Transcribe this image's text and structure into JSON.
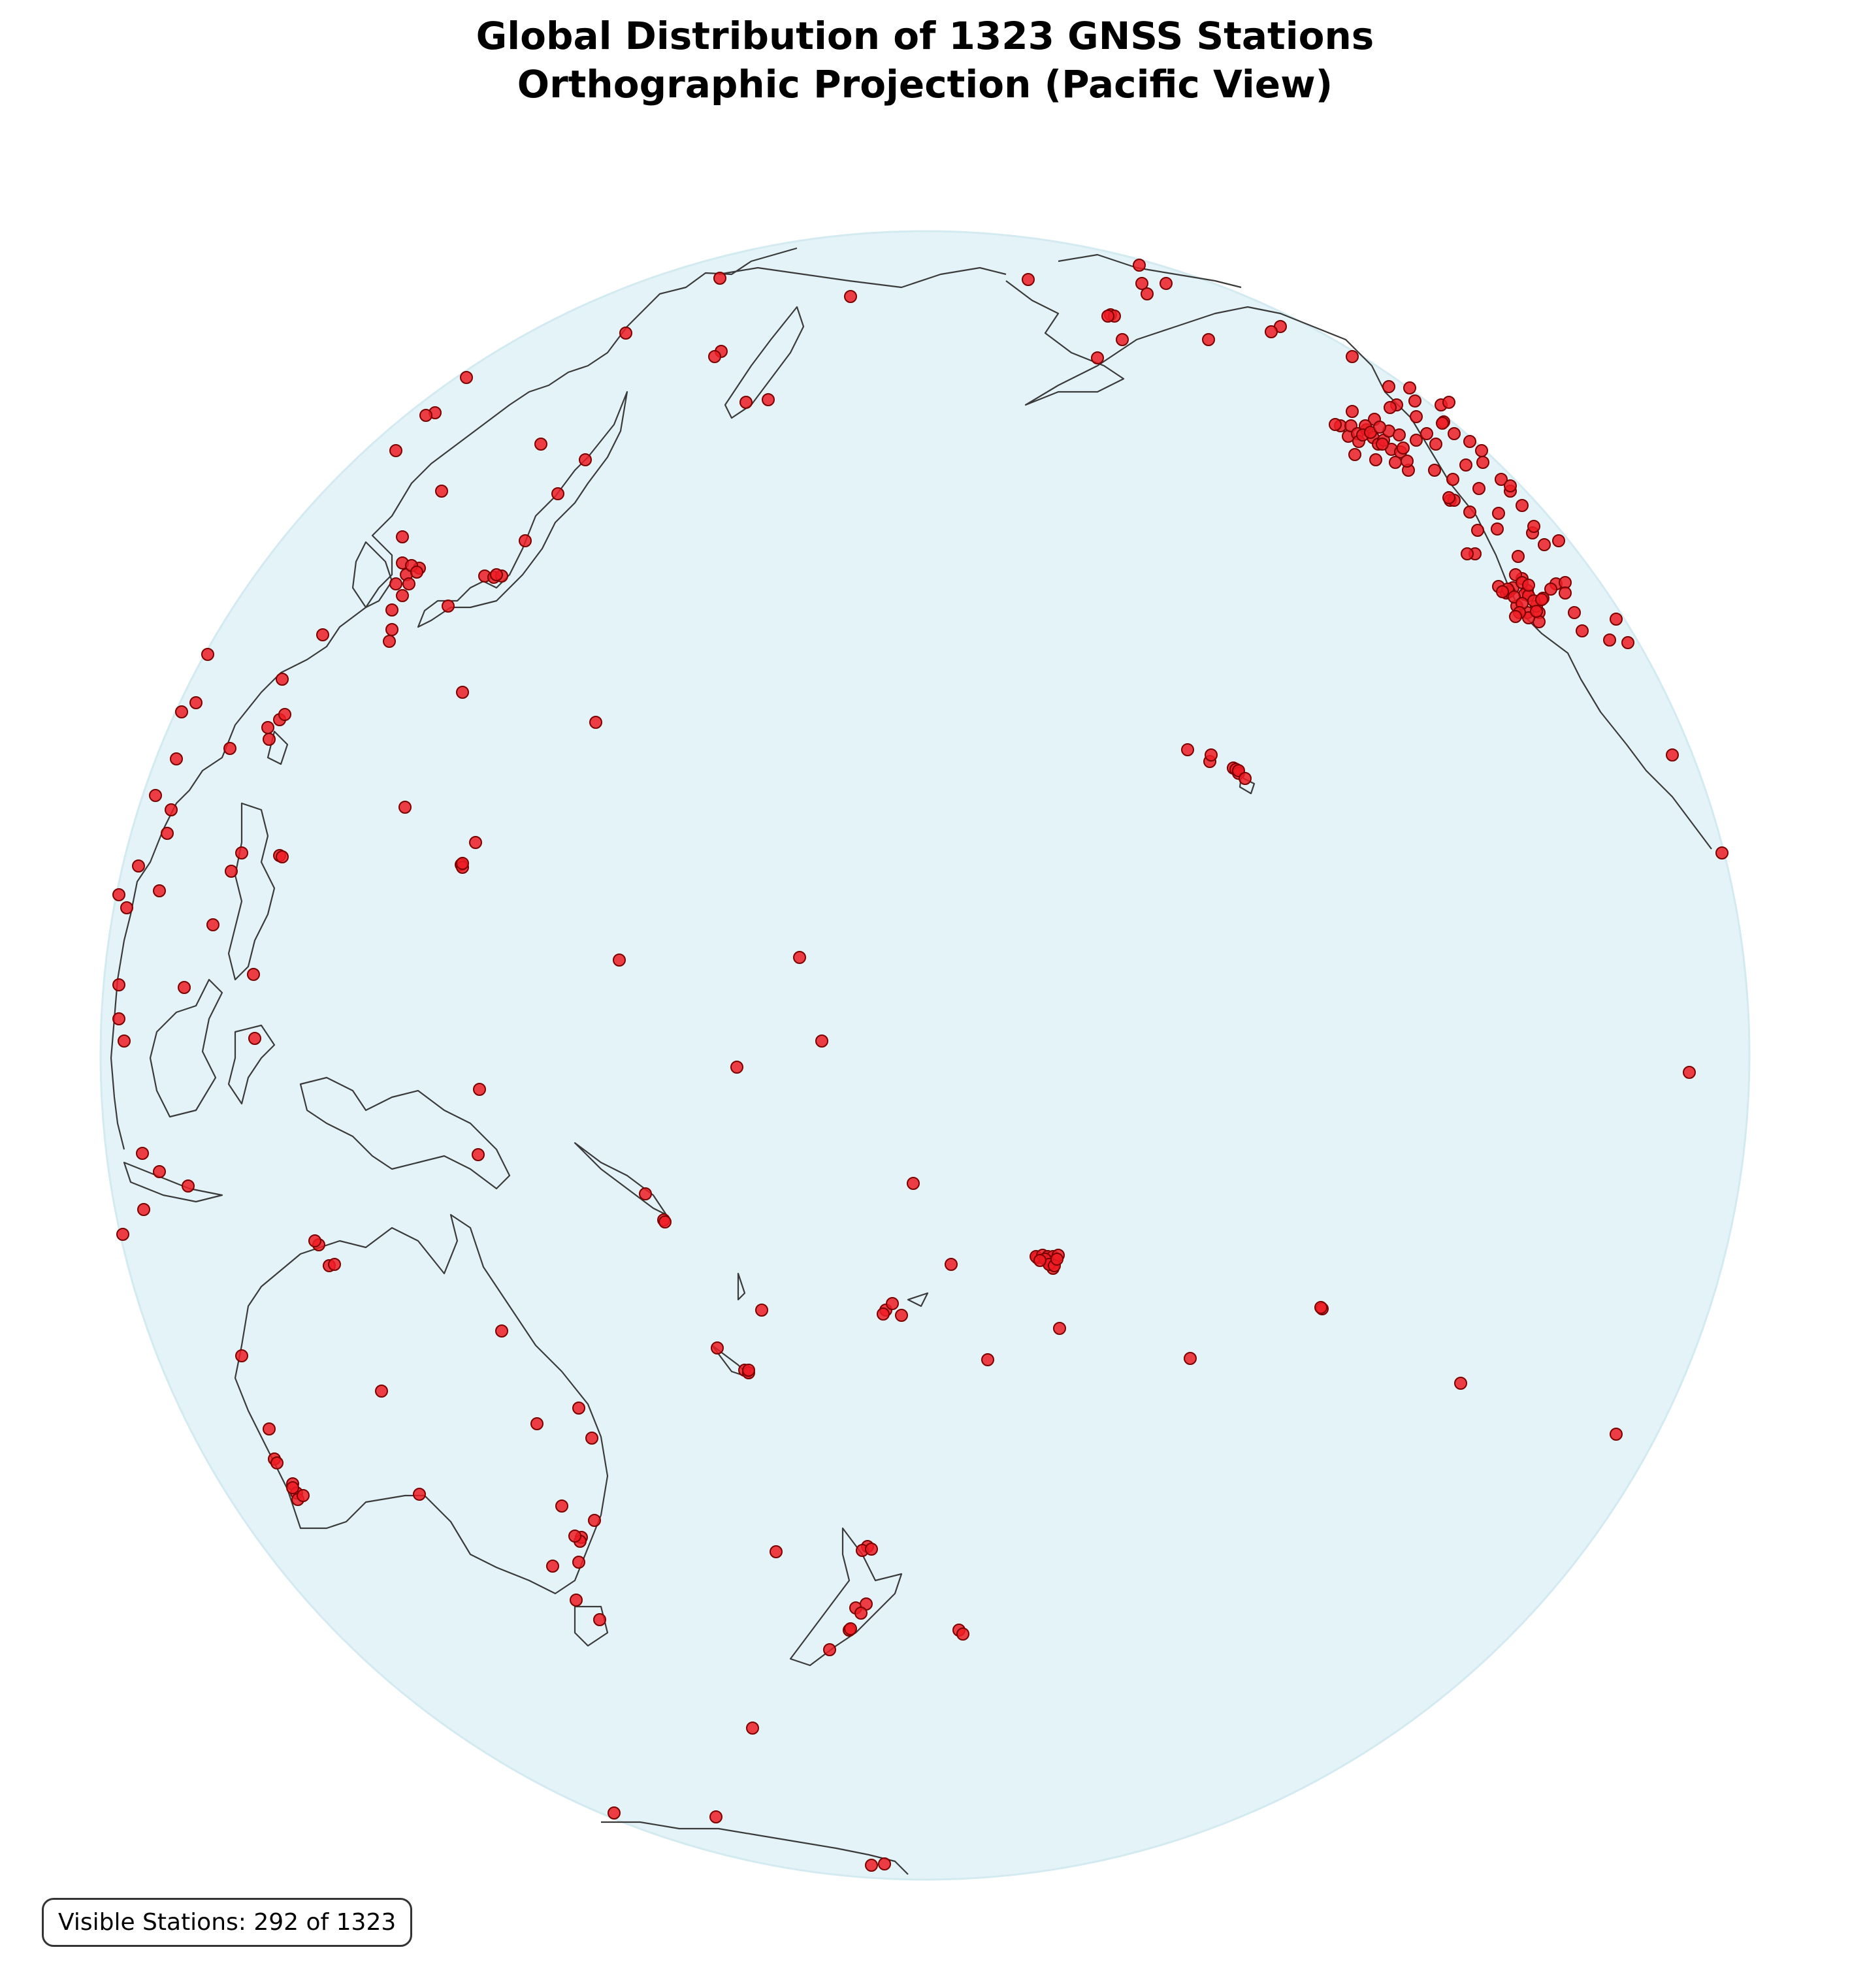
{
  "title": {
    "line1": "Global Distribution of 1323 GNSS Stations",
    "line2": "Orthographic Projection (Pacific View)"
  },
  "map": {
    "projection": "orthographic",
    "view": "Pacific",
    "ocean_color": "#e4f3f7",
    "coastline_color": "#3a3a3a",
    "station_color": "#ee1c25",
    "station_edge_color": "#7a0000"
  },
  "stations": {
    "total": 1323,
    "visible_label": "Visible Stations: 292 of 1323"
  }
}
